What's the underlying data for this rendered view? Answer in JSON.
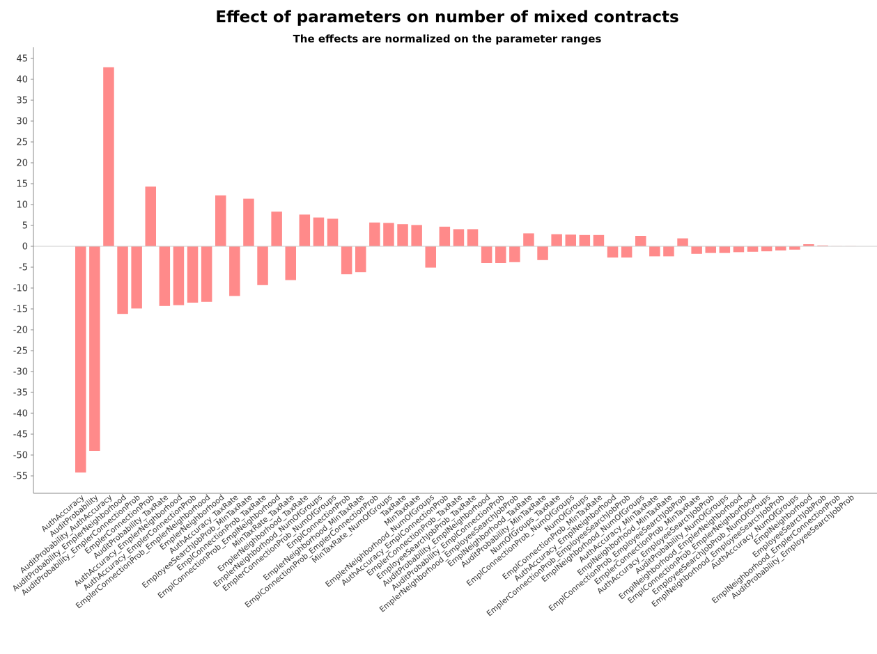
{
  "chart_data": {
    "type": "bar",
    "title": "Effect of parameters on number of mixed contracts",
    "subtitle": "The effects are normalized on the parameter ranges",
    "xlabel": "",
    "ylabel": "",
    "ylim": [
      -59,
      48
    ],
    "yticks": [
      45,
      40,
      35,
      30,
      25,
      20,
      15,
      10,
      5,
      0,
      -5,
      -10,
      -15,
      -20,
      -25,
      -30,
      -35,
      -40,
      -45,
      -50,
      -55
    ],
    "grid": false,
    "bar_color": "#ff8a8a",
    "zero_line_color": "#cccccc",
    "categories": [
      "AuthAccuracy",
      "AuditProbability",
      "AuditProbability_AuthAccuracy",
      "AuditProbability_EmplerNeighborhood",
      "AuditProbability_EmplerConnectionProb",
      "EmplerConnectionProb",
      "AuditProbability_TaxRate",
      "AuthAccuracy_EmplerNeighborhood",
      "AuthAccuracy_EmplerConnectionProb",
      "EmplerConnectionProb_EmplerNeighborhood",
      "EmplerNeighborhood",
      "AuthAccuracy_TaxRate",
      "EmployeeSearchJobProb_MinTaxRate",
      "EmplConnectionProb_TaxRate",
      "EmplConnectionProb_EmplNeighborhood",
      "MinTaxRate_TaxRate",
      "EmplerNeighborhood_TaxRate",
      "EmplerNeighborhood_NumOfGroups",
      "EmplerConnectionProb_NumOfGroups",
      "EmplConnectionProb",
      "EmplerNeighborhood_MinTaxRate",
      "EmplConnectionProb_EmplerConnectionProb",
      "MinTaxRate_NumOfGroups",
      "TaxRate",
      "MinTaxRate",
      "EmplerNeighborhood_NumOfGroups",
      "AuthAccuracy_EmplConnectionProb",
      "EmplerConnectionProb_TaxRate",
      "EmployeeSearchJobProb_TaxRate",
      "AuditProbability_EmplNeighborhood",
      "AuditProbability_EmplConnectionProb",
      "EmplerNeighborhood_EmployeeSearchJobProb",
      "EmplNeighborhood_TaxRate",
      "AuditProbability_MinTaxRate",
      "NumOfGroups_TaxRate",
      "EmplConnectionProb_NumOfGroups",
      "NumOfGroups",
      "EmplConnectionProb_MinTaxRate",
      "AuthAccuracy_EmplNeighborhood",
      "EmplerConnectionProb_EmployeeSearchJobProb",
      "EmplNeighborhood_NumOfGroups",
      "AuthAccuracy_MinTaxRate",
      "EmplNeighborhood_MinTaxRate",
      "EmplConnectionProb_EmployeeSearchJobProb",
      "EmplerConnectionProb_MinTaxRate",
      "AuthAccuracy_EmployeeSearchJobProb",
      "AuditProbability_NumOfGroups",
      "EmplNeighborhood_EmplerNeighborhood",
      "EmplConnectionProb_EmplerNeighborhood",
      "EmployeeSearchJobProb_NumOfGroups",
      "EmplNeighborhood_EmployeeSearchJobProb",
      "AuthAccuracy_NumOfGroups",
      "EmplNeighborhood",
      "EmployeeSearchJobProb",
      "EmplNeighborhood_EmplerConnectionProb",
      "AuditProbability_EmployeeSearchJobProb"
    ],
    "values": [
      -54.2,
      -49.0,
      42.9,
      -16.2,
      -14.9,
      14.3,
      -14.3,
      -14.1,
      -13.5,
      -13.3,
      12.2,
      -11.9,
      11.4,
      -9.3,
      8.3,
      -8.1,
      7.6,
      6.9,
      6.6,
      -6.7,
      -6.2,
      5.7,
      5.6,
      5.3,
      5.1,
      -5.1,
      4.7,
      4.1,
      4.1,
      -4.0,
      -4.0,
      -3.8,
      3.1,
      -3.3,
      2.9,
      2.8,
      2.7,
      2.7,
      -2.7,
      -2.7,
      2.5,
      -2.4,
      -2.4,
      1.9,
      -1.8,
      -1.6,
      -1.6,
      -1.4,
      -1.3,
      -1.2,
      -1.0,
      -0.8,
      0.5,
      0.2,
      0.1,
      0.1
    ]
  }
}
